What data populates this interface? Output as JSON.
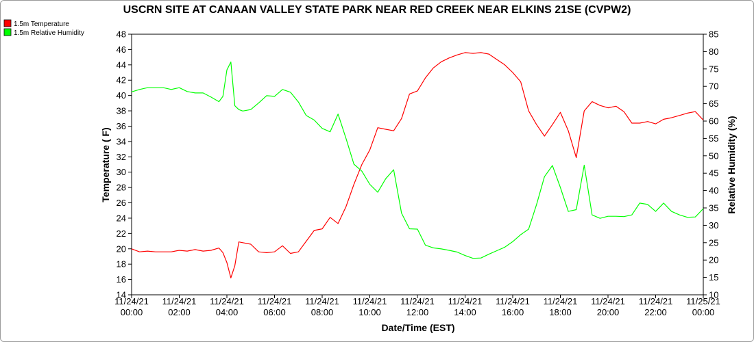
{
  "chart_data": {
    "type": "line",
    "title": "USCRN SITE AT CANAAN VALLEY STATE PARK NEAR RED CREEK NEAR ELKINS 21SE (CVPW2)",
    "xlabel": "Date/Time (EST)",
    "ylabel": "Temperature ( F)",
    "y2label": "Relative Humidity (%)",
    "ylim": [
      14,
      48
    ],
    "y2lim": [
      10,
      85
    ],
    "y_ticks": [
      14,
      16,
      18,
      20,
      22,
      24,
      26,
      28,
      30,
      32,
      34,
      36,
      38,
      40,
      42,
      44,
      46,
      48
    ],
    "y2_ticks": [
      10,
      15,
      20,
      25,
      30,
      35,
      40,
      45,
      50,
      55,
      60,
      65,
      70,
      75,
      80,
      85
    ],
    "x_tick_labels": [
      {
        "date": "11/24/21",
        "time": "00:00"
      },
      {
        "date": "11/24/21",
        "time": "02:00"
      },
      {
        "date": "11/24/21",
        "time": "04:00"
      },
      {
        "date": "11/24/21",
        "time": "06:00"
      },
      {
        "date": "11/24/21",
        "time": "08:00"
      },
      {
        "date": "11/24/21",
        "time": "10:00"
      },
      {
        "date": "11/24/21",
        "time": "12:00"
      },
      {
        "date": "11/24/21",
        "time": "14:00"
      },
      {
        "date": "11/24/21",
        "time": "16:00"
      },
      {
        "date": "11/24/21",
        "time": "18:00"
      },
      {
        "date": "11/24/21",
        "time": "20:00"
      },
      {
        "date": "11/24/21",
        "time": "22:00"
      },
      {
        "date": "11/25/21",
        "time": "00:00"
      }
    ],
    "grid": false,
    "legend_position": "top-left",
    "x": [
      "00:00",
      "00:20",
      "00:40",
      "01:00",
      "01:20",
      "01:40",
      "02:00",
      "02:20",
      "02:40",
      "03:00",
      "03:20",
      "03:40",
      "03:50",
      "04:00",
      "04:10",
      "04:20",
      "04:30",
      "04:40",
      "05:00",
      "05:20",
      "05:40",
      "06:00",
      "06:20",
      "06:40",
      "07:00",
      "07:20",
      "07:40",
      "08:00",
      "08:20",
      "08:40",
      "09:00",
      "09:20",
      "09:40",
      "10:00",
      "10:20",
      "10:40",
      "11:00",
      "11:20",
      "11:40",
      "12:00",
      "12:20",
      "12:40",
      "13:00",
      "13:20",
      "13:40",
      "14:00",
      "14:20",
      "14:40",
      "15:00",
      "15:20",
      "15:40",
      "16:00",
      "16:20",
      "16:40",
      "17:00",
      "17:20",
      "17:40",
      "18:00",
      "18:20",
      "18:40",
      "19:00",
      "19:20",
      "19:40",
      "20:00",
      "20:20",
      "20:40",
      "21:00",
      "21:20",
      "21:40",
      "22:00",
      "22:20",
      "22:40",
      "23:00",
      "23:20",
      "23:40",
      "24:00"
    ],
    "series": [
      {
        "name": "1.5m Temperature",
        "color": "#ff0000",
        "axis": "left",
        "values": [
          20.0,
          19.6,
          19.7,
          19.6,
          19.6,
          19.6,
          19.8,
          19.7,
          19.9,
          19.7,
          19.8,
          20.1,
          19.5,
          18.2,
          16.2,
          17.8,
          20.9,
          20.8,
          20.6,
          19.6,
          19.5,
          19.6,
          20.4,
          19.4,
          19.6,
          21.0,
          22.4,
          22.6,
          24.1,
          23.3,
          25.5,
          28.4,
          31.0,
          32.9,
          35.8,
          35.6,
          35.4,
          37.0,
          40.2,
          40.6,
          42.3,
          43.6,
          44.4,
          44.9,
          45.3,
          45.6,
          45.5,
          45.6,
          45.4,
          44.7,
          44.0,
          43.0,
          41.8,
          38.0,
          36.2,
          34.7,
          36.2,
          37.8,
          35.4,
          31.9,
          38.0,
          39.2,
          38.7,
          38.4,
          38.6,
          37.9,
          36.4,
          36.4,
          36.6,
          36.3,
          36.9,
          37.1,
          37.4,
          37.7,
          37.9,
          36.8
        ]
      },
      {
        "name": "1.5m Relative Humidity",
        "color": "#00ff00",
        "axis": "right",
        "values": [
          68.4,
          69.1,
          69.6,
          69.6,
          69.6,
          69.1,
          69.6,
          68.5,
          68.1,
          68.1,
          66.9,
          65.6,
          67.1,
          74.7,
          77.0,
          64.4,
          63.3,
          62.9,
          63.3,
          65.2,
          67.3,
          67.1,
          69.1,
          68.3,
          65.5,
          61.6,
          60.3,
          57.9,
          56.9,
          62.0,
          55.0,
          47.6,
          45.6,
          41.8,
          39.5,
          43.4,
          46.0,
          33.5,
          29.0,
          28.9,
          24.3,
          23.5,
          23.2,
          22.8,
          22.3,
          21.3,
          20.5,
          20.6,
          21.7,
          22.7,
          23.7,
          25.3,
          27.3,
          28.9,
          36.0,
          44.0,
          47.2,
          40.9,
          34.0,
          34.5,
          47.3,
          33.0,
          32.0,
          32.6,
          32.6,
          32.5,
          33.0,
          36.4,
          36.0,
          34.0,
          36.4,
          34.0,
          33.0,
          32.3,
          32.4,
          34.8
        ]
      }
    ]
  }
}
